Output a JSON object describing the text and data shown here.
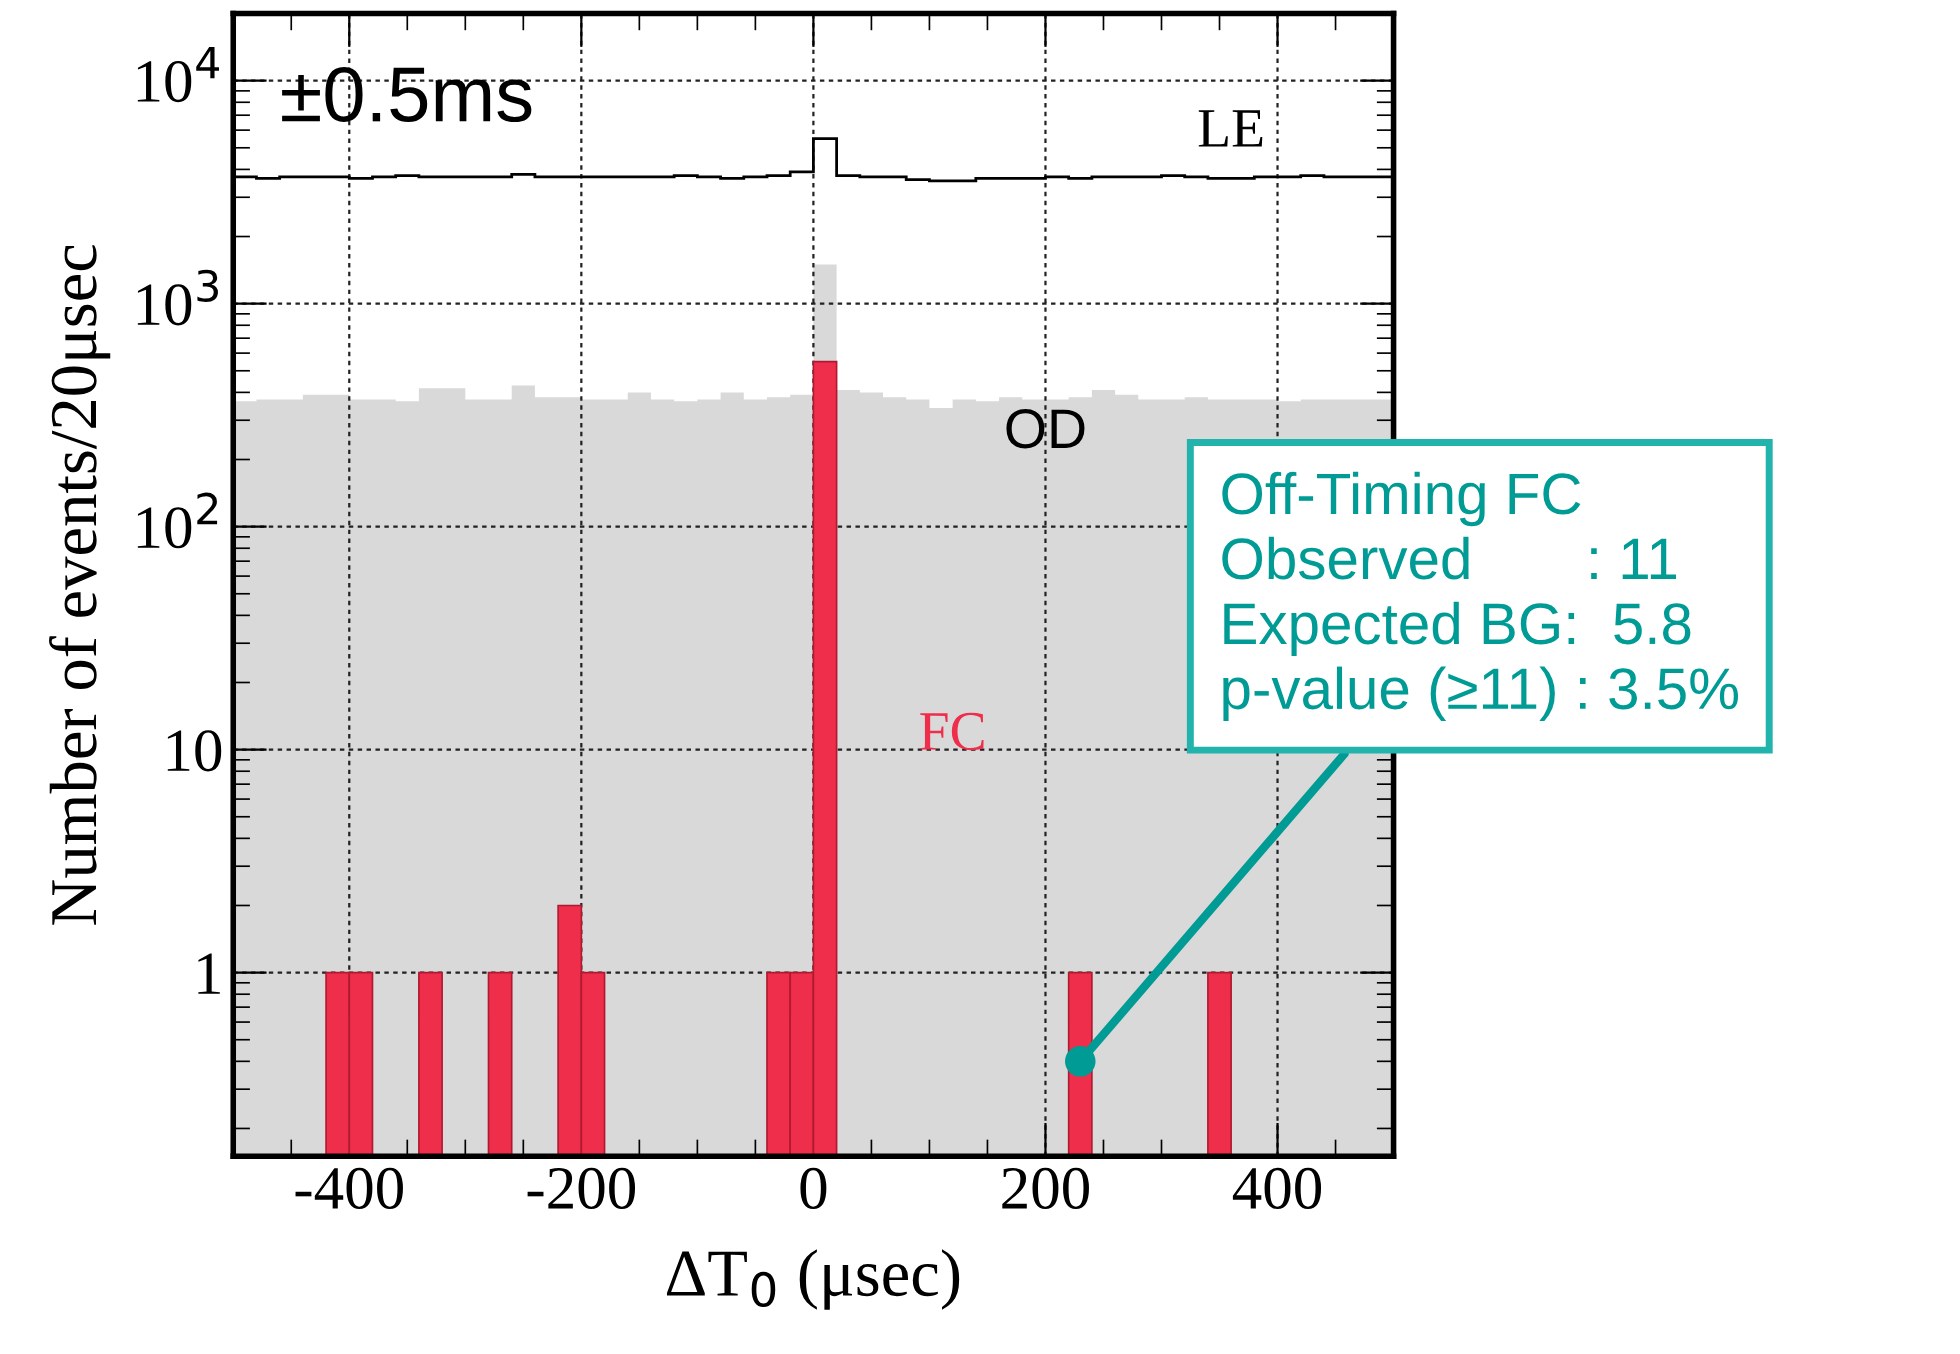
{
  "chart_data": {
    "type": "histogram",
    "xlabel": "ΔT$_{0}$ (μsec)",
    "ylabel": "Number of events/20μsec",
    "bins": [
      -500,
      -480,
      -460,
      -440,
      -420,
      -400,
      -380,
      -360,
      -340,
      -320,
      -300,
      -280,
      -260,
      -240,
      -220,
      -200,
      -180,
      -160,
      -140,
      -120,
      -100,
      -80,
      -60,
      -40,
      -20,
      0,
      20,
      40,
      60,
      80,
      100,
      120,
      140,
      160,
      180,
      200,
      220,
      240,
      260,
      280,
      300,
      320,
      340,
      360,
      380,
      400,
      420,
      440,
      460,
      480,
      500
    ],
    "series": [
      {
        "name": "LE",
        "color": "#000000",
        "values": [
          3700,
          3650,
          3700,
          3700,
          3700,
          3650,
          3700,
          3750,
          3700,
          3700,
          3700,
          3700,
          3800,
          3700,
          3700,
          3700,
          3700,
          3700,
          3700,
          3750,
          3700,
          3650,
          3700,
          3750,
          3900,
          5500,
          3750,
          3700,
          3700,
          3600,
          3550,
          3550,
          3650,
          3650,
          3650,
          3700,
          3650,
          3700,
          3700,
          3700,
          3750,
          3700,
          3650,
          3650,
          3700,
          3700,
          3750,
          3700,
          3700,
          3700
        ]
      },
      {
        "name": "OD",
        "color": "#d9d9d9",
        "values": [
          365,
          372,
          372,
          390,
          390,
          372,
          372,
          365,
          417,
          417,
          372,
          372,
          430,
          380,
          380,
          372,
          372,
          400,
          372,
          365,
          372,
          400,
          372,
          380,
          390,
          1500,
          410,
          400,
          380,
          372,
          340,
          372,
          365,
          380,
          372,
          372,
          380,
          410,
          390,
          372,
          372,
          380,
          372,
          372,
          372,
          365,
          372,
          372,
          372,
          372
        ]
      },
      {
        "name": "FC",
        "color": "#ee2e4a",
        "values": [
          null,
          null,
          null,
          null,
          1,
          1,
          null,
          null,
          1,
          null,
          null,
          1,
          null,
          null,
          2,
          1,
          null,
          null,
          null,
          null,
          null,
          null,
          null,
          1,
          1,
          550,
          null,
          null,
          null,
          null,
          null,
          null,
          null,
          null,
          null,
          null,
          1,
          null,
          null,
          null,
          null,
          null,
          1,
          null,
          null,
          null,
          null,
          null,
          null,
          null
        ]
      }
    ],
    "xlim": [
      -500,
      500
    ],
    "xticks": [
      -400,
      -200,
      0,
      200,
      400
    ],
    "ylim": [
      0.15,
      20000
    ],
    "log": true,
    "yticks": [
      {
        "value": 1,
        "label": "1"
      },
      {
        "value": 10,
        "label": "10"
      },
      {
        "value": 100,
        "label": "10$^{2}$"
      },
      {
        "value": 1000,
        "label": "10$^{3}$"
      },
      {
        "value": 10000,
        "label": "10$^{4}$"
      }
    ],
    "grid": true,
    "annotations": [
      "±0.5ms",
      {
        "text": "Off-Timing FC\nObserved       : 11\nExpected BG:  5.8\np-value (≥11) : 3.5%",
        "x": 230,
        "y": 0.4
      }
    ]
  }
}
